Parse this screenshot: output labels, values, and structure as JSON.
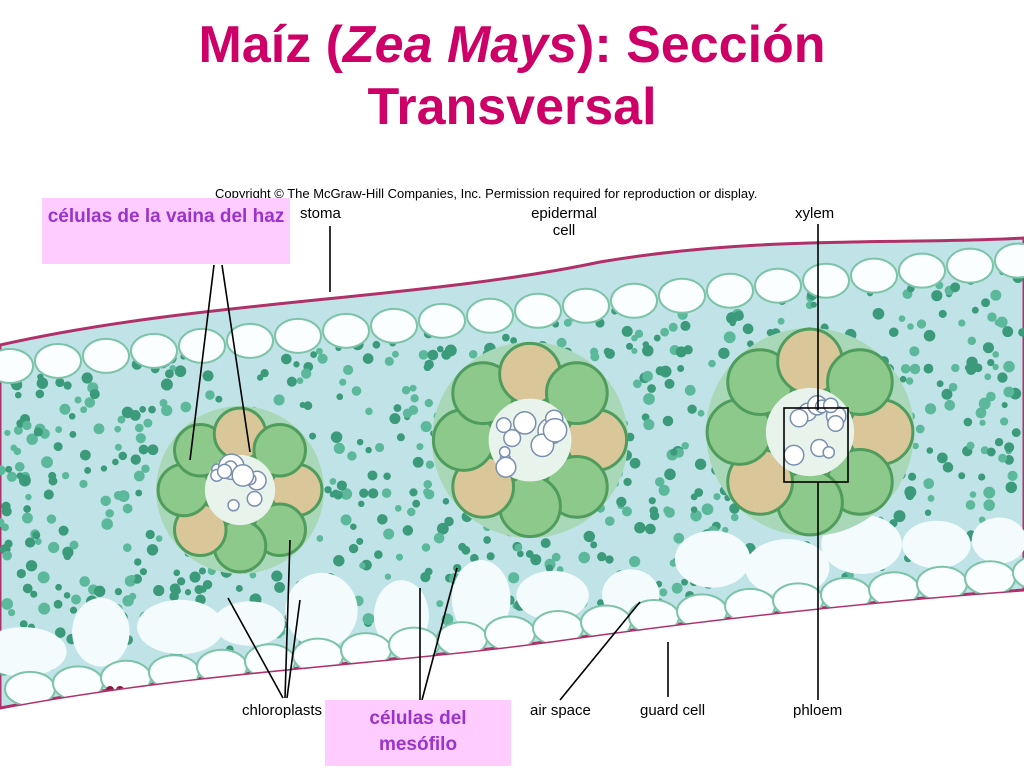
{
  "title": {
    "prefix": "Maíz (",
    "italic": "Zea Mays",
    "suffix": "): Sección Transversal"
  },
  "copyright": "Copyright © The McGraw-Hill Companies, Inc. Permission required for reproduction or display.",
  "labels": {
    "stoma": "stoma",
    "epidermal_cell": "epidermal cell",
    "xylem": "xylem",
    "chloroplasts": "chloroplasts",
    "air_space": "air space",
    "guard_cell": "guard cell",
    "phloem": "phloem"
  },
  "boxes": {
    "bundle_sheath": "células de la vaina del haz",
    "mesophyll": "células del mesófilo"
  }
}
